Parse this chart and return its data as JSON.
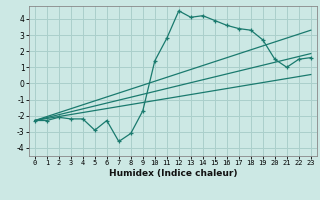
{
  "xlabel": "Humidex (Indice chaleur)",
  "bg_color": "#cce8e4",
  "grid_color": "#aacfcb",
  "line_color": "#1a7a6e",
  "xlim": [
    -0.5,
    23.5
  ],
  "ylim": [
    -4.5,
    4.8
  ],
  "yticks": [
    -4,
    -3,
    -2,
    -1,
    0,
    1,
    2,
    3,
    4
  ],
  "xticks": [
    0,
    1,
    2,
    3,
    4,
    5,
    6,
    7,
    8,
    9,
    10,
    11,
    12,
    13,
    14,
    15,
    16,
    17,
    18,
    19,
    20,
    21,
    22,
    23
  ],
  "data_x": [
    0,
    1,
    2,
    3,
    4,
    5,
    6,
    7,
    8,
    9,
    10,
    11,
    12,
    13,
    14,
    15,
    16,
    17,
    18,
    19,
    20,
    21,
    22,
    23
  ],
  "data_y": [
    -2.3,
    -2.3,
    -2.1,
    -2.2,
    -2.2,
    -2.9,
    -2.3,
    -3.6,
    -3.1,
    -1.7,
    1.4,
    2.8,
    4.5,
    4.1,
    4.2,
    3.9,
    3.6,
    3.4,
    3.3,
    2.7,
    1.5,
    1.0,
    1.5,
    1.6
  ],
  "line1_x": [
    0,
    23
  ],
  "line1_y": [
    -2.3,
    3.3
  ],
  "line2_x": [
    0,
    23
  ],
  "line2_y": [
    -2.3,
    0.55
  ],
  "line3_x": [
    0,
    23
  ],
  "line3_y": [
    -2.3,
    1.85
  ]
}
